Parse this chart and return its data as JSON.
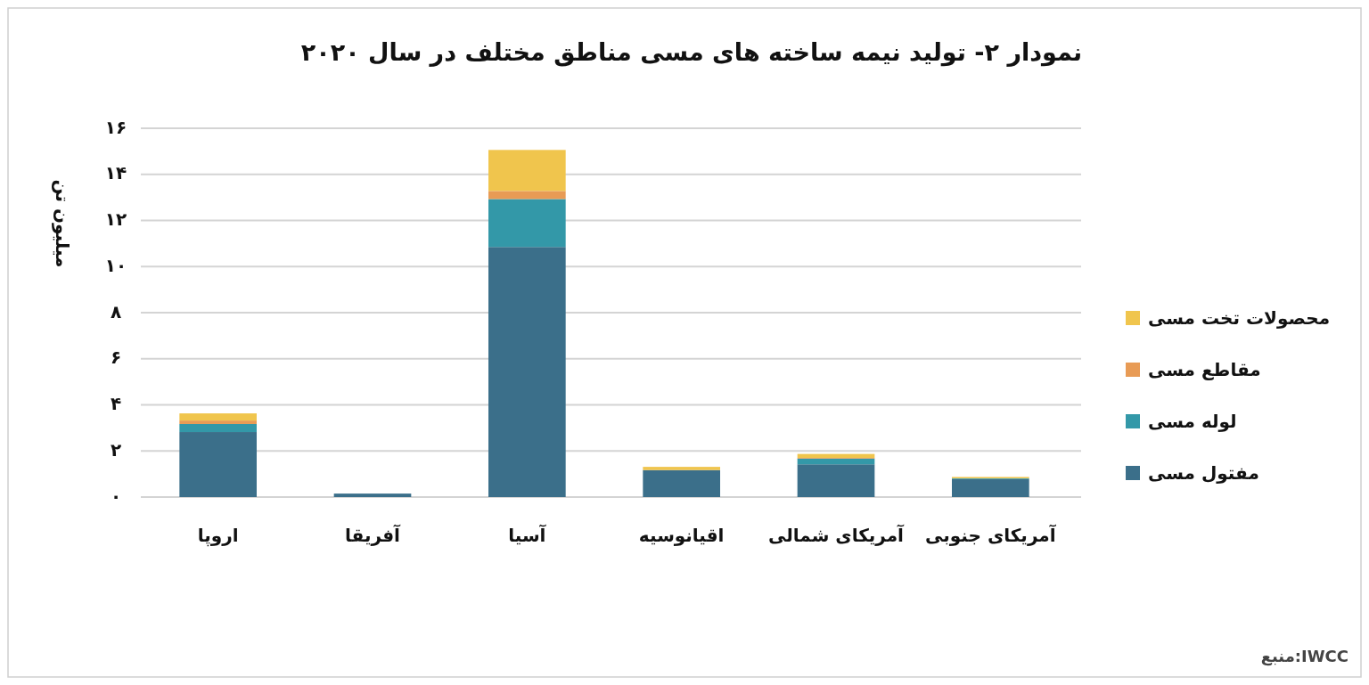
{
  "chart_data": {
    "type": "bar",
    "stacked": true,
    "title": "نمودار ۲- تولید نیمه ساخته های مسی مناطق مختلف در سال ۲۰۲۰",
    "ylabel": "میلیون تن",
    "categories": [
      "اروپا",
      "آفریقا",
      "آسیا",
      "اقیانوسیه",
      "آمریکای شمالی",
      "آمریکای جنوبی"
    ],
    "series": [
      {
        "name": "مفتول مسی",
        "color": "#3b6f8a",
        "values": [
          2.82,
          0.15,
          10.85,
          1.17,
          1.42,
          0.78
        ]
      },
      {
        "name": "لوله مسی",
        "color": "#3398a8",
        "values": [
          0.35,
          null,
          2.08,
          null,
          0.25,
          0.03
        ]
      },
      {
        "name": "مقاطع مسی",
        "color": "#e89b55",
        "values": [
          0.15,
          null,
          0.35,
          null,
          0.03,
          null
        ]
      },
      {
        "name": "محصولات تخت مسی",
        "color": "#f0c54d",
        "values": [
          0.31,
          null,
          1.78,
          0.14,
          0.17,
          0.06
        ]
      }
    ],
    "ylim": [
      0,
      16
    ],
    "yticks": [
      {
        "value": 0,
        "label": "۰"
      },
      {
        "value": 2,
        "label": "۲"
      },
      {
        "value": 4,
        "label": "۴"
      },
      {
        "value": 6,
        "label": "۶"
      },
      {
        "value": 8,
        "label": "۸"
      },
      {
        "value": 10,
        "label": "۱۰"
      },
      {
        "value": 12,
        "label": "۱۲"
      },
      {
        "value": 14,
        "label": "۱۴"
      },
      {
        "value": 16,
        "label": "۱۶"
      }
    ],
    "grid": "y",
    "legend": "right",
    "tick_labels": "xy",
    "annotations": [
      "منبع:IWCC"
    ]
  }
}
